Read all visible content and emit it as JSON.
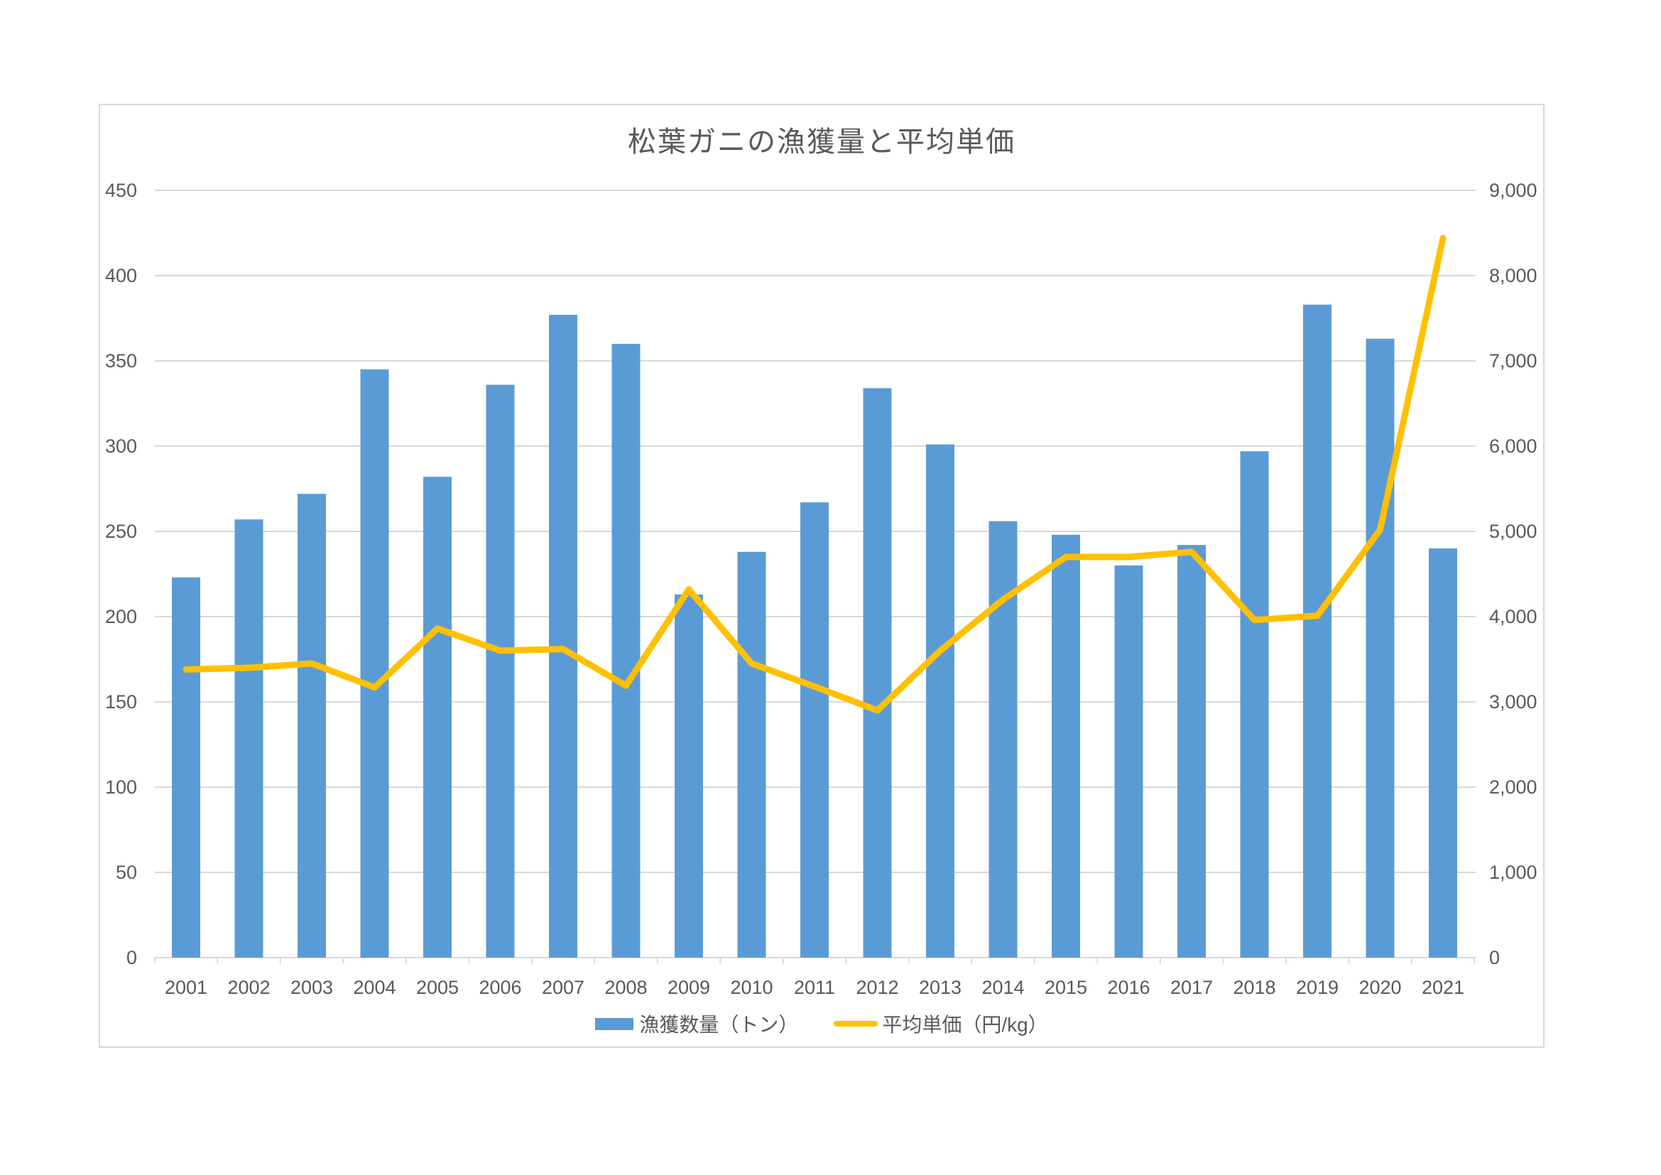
{
  "chart_data": {
    "type": "combo",
    "title": "松葉ガニの漁獲量と平均単価",
    "categories": [
      "2001",
      "2002",
      "2003",
      "2004",
      "2005",
      "2006",
      "2007",
      "2008",
      "2009",
      "2010",
      "2011",
      "2012",
      "2013",
      "2014",
      "2015",
      "2016",
      "2017",
      "2018",
      "2019",
      "2020",
      "2021"
    ],
    "series": [
      {
        "name": "漁獲数量（トン）",
        "type": "bar",
        "axis": "left",
        "color": "#5B9BD5",
        "values": [
          223,
          257,
          272,
          345,
          282,
          336,
          377,
          360,
          213,
          238,
          267,
          334,
          301,
          256,
          248,
          230,
          242,
          297,
          383,
          363,
          240
        ]
      },
      {
        "name": "平均単価（円/kg）",
        "type": "line",
        "axis": "right",
        "color": "#FFC000",
        "values": [
          3380,
          3400,
          3450,
          3170,
          3860,
          3600,
          3620,
          3190,
          4320,
          3450,
          3180,
          2900,
          3600,
          4200,
          4700,
          4700,
          4760,
          3960,
          4010,
          5020,
          8440
        ]
      }
    ],
    "left_axis": {
      "min": 0,
      "max": 450,
      "step": 50,
      "tick_labels": [
        "0",
        "50",
        "100",
        "150",
        "200",
        "250",
        "300",
        "350",
        "400",
        "450"
      ]
    },
    "right_axis": {
      "min": 0,
      "max": 9000,
      "step": 1000,
      "tick_labels": [
        "0",
        "1,000",
        "2,000",
        "3,000",
        "4,000",
        "5,000",
        "6,000",
        "7,000",
        "8,000",
        "9,000"
      ]
    },
    "grid": true,
    "legend_position": "bottom"
  },
  "colors": {
    "bar_fill": "#5B9BD5",
    "line_stroke": "#FFC000",
    "gridline": "#D9D9D9",
    "axis_line": "#D9D9D9",
    "panel_border": "#D9D9D9",
    "axis_text": "#595959",
    "title_text": "#595959"
  }
}
